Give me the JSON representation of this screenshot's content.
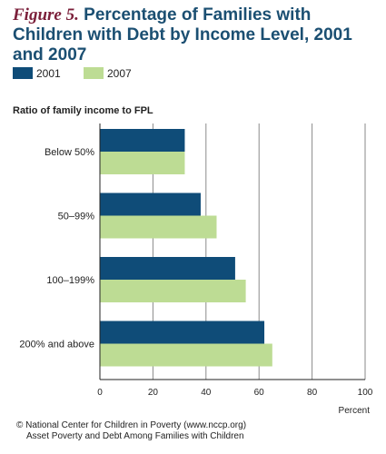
{
  "figure": {
    "label": "Figure 5.",
    "title": "Percentage of Families with Children with Debt by Income Level, 2001 and 2007"
  },
  "legend": [
    {
      "name": "2001",
      "color": "#0f4c78"
    },
    {
      "name": "2007",
      "color": "#bddc94"
    }
  ],
  "chart_data": {
    "type": "bar",
    "orientation": "horizontal",
    "ylabel": "Ratio of family income to FPL",
    "xlabel": "Percent",
    "categories": [
      "Below 50%",
      "50–99%",
      "100–199%",
      "200% and above"
    ],
    "series": [
      {
        "name": "2001",
        "color": "#0f4c78",
        "values": [
          32,
          38,
          51,
          62
        ]
      },
      {
        "name": "2007",
        "color": "#bddc94",
        "values": [
          32,
          44,
          55,
          65
        ]
      }
    ],
    "xlim": [
      0,
      100
    ],
    "xticks": [
      0,
      20,
      40,
      60,
      80,
      100
    ],
    "grid": true,
    "legend_position": "top-left"
  },
  "footer": {
    "line1": "© National Center for Children in Poverty (www.nccp.org)",
    "line2": "Asset Poverty and Debt Among Families with Children"
  }
}
